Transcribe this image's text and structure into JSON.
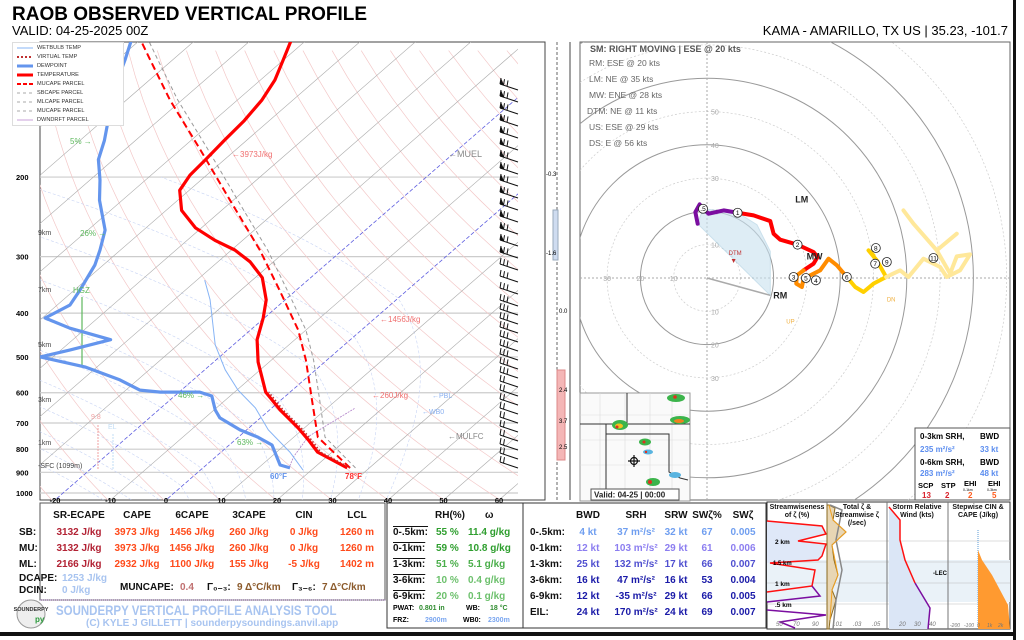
{
  "header": {
    "title": "RAOB OBSERVED VERTICAL PROFILE",
    "valid": "VALID: 04-25-2025 00Z",
    "station": "KAMA - AMARILLO, TX US | 35.23, -101.7"
  },
  "legend": [
    "WETBULB TEMP",
    "VIRTUAL TEMP",
    "DEWPOINT",
    "TEMPERATURE",
    "MUCAPE PARCEL",
    "SBCAPE PARCEL",
    "MLCAPE PARCEL",
    "MUCAPE PARCEL",
    "DWNDRFT PARCEL"
  ],
  "skewt_annotations": {
    "cape_3973": "←3973J/kg",
    "cape_1456": "←1456J/kg",
    "cape_260": "←260J/kg",
    "muel": "←MUEL",
    "pbl": "←PBL",
    "wb0": "←WB0",
    "mulfc": "←MULFC",
    "rh5": "5% →",
    "rh26": "26% →",
    "rh46": "46% →",
    "rh63": "63% →",
    "hgz": "HGZ",
    "km9": "9km",
    "km7": "7km",
    "km5": "5km",
    "km3": "3km",
    "km1": "1km",
    "sfc": "-SFC (1099m)",
    "lapse": "9.8",
    "el": "EL",
    "dewpoint_sfc": "60°F",
    "temp_sfc": "78°F"
  },
  "advection_labels": [
    "-0.3",
    "-1.6",
    "0.0",
    "2.4",
    "3.7",
    "2.5"
  ],
  "storm_motion": {
    "title": "SM: RIGHT MOVING | ESE @ 20 kts",
    "items": [
      "RM: ESE @ 20 kts",
      "LM: NE @ 35 kts",
      "MW: ENE @ 28 kts",
      "DTM: NE @ 11 kts",
      "US: ESE @ 29 kts",
      "DS: E @ 56 kts"
    ]
  },
  "radar": {
    "valid": "Valid: 04-25 | 00:00"
  },
  "srh_box": {
    "h1": "0-3km SRH,",
    "h1b": "BWD",
    "v1": "235 m²/s²",
    "v1b": "33 kt",
    "h2": "0-6km SRH,",
    "h2b": "BWD",
    "v2": "283 m²/s²",
    "v2b": "48 kt",
    "labels": [
      "SCP",
      "STP",
      "EHI",
      "EHI"
    ],
    "sublabels": [
      "",
      "",
      "0-1km",
      "0-3km"
    ],
    "values": [
      "13",
      "2",
      "2",
      "5"
    ]
  },
  "thermo_table": {
    "headers": [
      "SR-ECAPE",
      "CAPE",
      "6CAPE",
      "3CAPE",
      "CIN",
      "LCL"
    ],
    "rows": [
      {
        "label": "SB:",
        "values": [
          "3132 J/kg",
          "3973 J/kg",
          "1456 J/kg",
          "260 J/kg",
          "0 J/kg",
          "1260 m"
        ]
      },
      {
        "label": "MU:",
        "values": [
          "3132 J/kg",
          "3973 J/kg",
          "1456 J/kg",
          "260 J/kg",
          "0 J/kg",
          "1260 m"
        ]
      },
      {
        "label": "ML:",
        "values": [
          "2166 J/kg",
          "2932 J/kg",
          "1100 J/kg",
          "155 J/kg",
          "-5 J/kg",
          "1402 m"
        ]
      }
    ],
    "dcape_label": "DCAPE:",
    "dcape": "1253 J/kg",
    "dcin_label": "DCIN:",
    "dcin": "0 J/kg",
    "muncape_label": "MUNCAPE:",
    "muncape": "0.4",
    "lr03_label": "Γ₀₋₃:",
    "lr03": "9 Δ°C/km",
    "lr36_label": "Γ₃₋₆:",
    "lr36": "7 Δ°C/km"
  },
  "branding": {
    "logo": "SOUNDERPY",
    "title": "SOUNDERPY VERTICAL PROFILE ANALYSIS TOOL",
    "credit": "(C) KYLE J GILLETT | sounderpysoundings.anvil.app"
  },
  "moisture_table": {
    "headers": [
      "RH(%)",
      "ω"
    ],
    "rows": [
      {
        "label": "0-.5km:",
        "rh": "55 %",
        "w": "11.4 g/kg"
      },
      {
        "label": "0-1km:",
        "rh": "59 %",
        "w": "10.8 g/kg"
      },
      {
        "label": "1-3km:",
        "rh": "51 %",
        "w": "5.1 g/kg"
      },
      {
        "label": "3-6km:",
        "rh": "10 %",
        "w": "0.4 g/kg"
      },
      {
        "label": "6-9km:",
        "rh": "20 %",
        "w": "0.1 g/kg"
      }
    ],
    "pwat_label": "PWAT:",
    "pwat": "0.801 in",
    "wb_label": "WB:",
    "wb": "18 °C",
    "frz_label": "FRZ:",
    "frz": "2900m",
    "wb0_label": "WB0:",
    "wb0": "2300m"
  },
  "kinematic_table": {
    "headers": [
      "BWD",
      "SRH",
      "SRW",
      "SWζ%",
      "SWζ"
    ],
    "rows": [
      {
        "label": "0-.5km:",
        "values": [
          "4 kt",
          "37 m²/s²",
          "32 kt",
          "67",
          "0.005"
        ]
      },
      {
        "label": "0-1km:",
        "values": [
          "12 kt",
          "103 m²/s²",
          "29 kt",
          "61",
          "0.006"
        ]
      },
      {
        "label": "1-3km:",
        "values": [
          "25 kt",
          "132 m²/s²",
          "17 kt",
          "66",
          "0.007"
        ]
      },
      {
        "label": "3-6km:",
        "values": [
          "16 kt",
          "47 m²/s²",
          "16 kt",
          "53",
          "0.004"
        ]
      },
      {
        "label": "6-9km:",
        "values": [
          "12 kt",
          "-35 m²/s²",
          "29 kt",
          "66",
          "0.005"
        ]
      },
      {
        "label": "EIL:",
        "values": [
          "24 kt",
          "170 m²/s²",
          "24 kt",
          "69",
          "0.007"
        ]
      }
    ]
  },
  "mini_panels": {
    "p1_title": "Streamwiseness of ζ (%)",
    "p1_km": [
      "2 km",
      "1.5 km",
      "1 km",
      ".5 km"
    ],
    "p1_ticks": [
      "50",
      "70",
      "90"
    ],
    "p2_title": "Total ζ & Streamwise ζ (/sec)",
    "p2_ticks": [
      ".01",
      ".03",
      ".05"
    ],
    "p3_title": "Storm Relative Wind (kts)",
    "p3_ticks": [
      "20",
      "30",
      "40"
    ],
    "p3_lec": "-LEC",
    "p4_title": "Stepwise CIN & CAPE (J/kg)",
    "p4_ticks": [
      "-200",
      "-100",
      "0",
      "1k",
      "2k"
    ]
  },
  "colors": {
    "temperature": "#ff0000",
    "dewpoint": "#6495ed",
    "wetbulb": "#87b4f5",
    "parcel": "#ff0000",
    "accent_blue": "#6f9ef0",
    "dark_blue": "#1a1aa8",
    "cape_orange": "#ff4a1a",
    "ecape_red": "#b22234"
  },
  "chart_data": [
    {
      "type": "line",
      "title": "",
      "xlabel": "",
      "ylabel": "",
      "x_ticks": [
        -20,
        -10,
        0,
        10,
        20,
        30,
        40,
        50,
        60
      ],
      "y_ticks": [
        200,
        300,
        400,
        500,
        600,
        700,
        800,
        900,
        1000
      ],
      "ylim": [
        1000,
        100
      ],
      "y_scale": "log (skew-T)",
      "series": [
        {
          "name": "TEMPERATURE",
          "points": [
            [
              880,
              26.0
            ],
            [
              812,
              17.4
            ],
            [
              763,
              13.2
            ],
            [
              718,
              8.9
            ],
            [
              655,
              1.9
            ],
            [
              598,
              -4.4
            ],
            [
              513,
              -12.0
            ],
            [
              458,
              -16.8
            ],
            [
              410,
              -20.2
            ],
            [
              374,
              -23.4
            ],
            [
              334,
              -28.7
            ],
            [
              308,
              -34.2
            ],
            [
              290,
              -39.4
            ],
            [
              276,
              -45.0
            ],
            [
              259,
              -51.1
            ],
            [
              237,
              -57.2
            ],
            [
              214,
              -61.7
            ],
            [
              198,
              -63.0
            ],
            [
              183,
              -63.4
            ],
            [
              166,
              -64.0
            ],
            [
              150,
              -64.5
            ],
            [
              135,
              -65.6
            ],
            [
              122,
              -67.4
            ],
            [
              110,
              -70.1
            ],
            [
              100,
              -72.6
            ]
          ]
        },
        {
          "name": "DEWPOINT",
          "points": [
            [
              880,
              15.7
            ],
            [
              867,
              13.3
            ],
            [
              783,
              7.7
            ],
            [
              752,
              3.5
            ],
            [
              725,
              -1.2
            ],
            [
              682,
              -7.3
            ],
            [
              655,
              -9.8
            ],
            [
              610,
              -13.3
            ],
            [
              598,
              -16.3
            ],
            [
              598,
              -23.4
            ],
            [
              592,
              -27.5
            ],
            [
              562,
              -33.2
            ],
            [
              526,
              -42.2
            ],
            [
              500,
              -52.3
            ],
            [
              483,
              -48.4
            ],
            [
              458,
              -43.2
            ],
            [
              432,
              -52.9
            ],
            [
              410,
              -59.5
            ],
            [
              384,
              -57.7
            ],
            [
              356,
              -59.0
            ],
            [
              313,
              -61.5
            ],
            [
              290,
              -63.7
            ],
            [
              262,
              -66.9
            ],
            [
              225,
              -74.1
            ],
            [
              203,
              -78.2
            ],
            [
              183,
              -82.7
            ],
            [
              166,
              -85.6
            ],
            [
              142,
              -90.9
            ],
            [
              125,
              -95.1
            ],
            [
              110,
              -98.6
            ],
            [
              100,
              -101.4
            ]
          ]
        },
        {
          "name": "WETBULB TEMP",
          "points": [
            [
              890,
              18.5
            ],
            [
              812,
              12.4
            ],
            [
              725,
              3.9
            ],
            [
              648,
              -3.0
            ],
            [
              592,
              -9.8
            ],
            [
              534,
              -16.3
            ],
            [
              470,
              -23.3
            ],
            [
              374,
              -33.5
            ],
            [
              338,
              -38.6
            ]
          ]
        },
        {
          "name": "MUCAPE PARCEL",
          "points": [
            [
              880,
              26.5
            ],
            [
              752,
              14.3
            ],
            [
              623,
              5.6
            ],
            [
              508,
              -3.8
            ],
            [
              436,
              -11.4
            ],
            [
              356,
              -23.0
            ],
            [
              290,
              -34.9
            ],
            [
              225,
              -50.6
            ],
            [
              174,
              -66.4
            ],
            [
              135,
              -82.2
            ],
            [
              110,
              -94.1
            ],
            [
              100,
              -99.6
            ]
          ]
        },
        {
          "name": "MLCAPE PARCEL",
          "points": [
            [
              880,
              27.5
            ],
            [
              752,
              15.6
            ],
            [
              623,
              7.0
            ],
            [
              508,
              -2.4
            ],
            [
              436,
              -10.0
            ],
            [
              356,
              -21.6
            ],
            [
              290,
              -33.5
            ],
            [
              225,
              -49.2
            ],
            [
              174,
              -65.0
            ],
            [
              135,
              -80.8
            ],
            [
              110,
              -92.7
            ],
            [
              100,
              -98.2
            ]
          ]
        }
      ]
    },
    {
      "type": "line",
      "title": "hodograph",
      "units": "kts",
      "rings": [
        10,
        20,
        30,
        40,
        50,
        60,
        70,
        80,
        90
      ],
      "segments": [
        {
          "color": "#7b0ea0",
          "points": [
            [
              -2.8,
              16.3
            ],
            [
              -3.5,
              19.8
            ],
            [
              -2.2,
              22.1
            ],
            [
              -1.2,
              20.8
            ],
            [
              0.5,
              19.3
            ],
            [
              5,
              20.3
            ],
            [
              9.2,
              19.6
            ]
          ]
        },
        {
          "color": "#ff0000",
          "points": [
            [
              9.2,
              19.6
            ],
            [
              14,
              18.8
            ],
            [
              19,
              17.1
            ],
            [
              20,
              13.3
            ],
            [
              22,
              11.5
            ],
            [
              27.2,
              10
            ],
            [
              32,
              7.8
            ],
            [
              33.2,
              6.3
            ],
            [
              32,
              4.3
            ],
            [
              29,
              2.3
            ]
          ]
        },
        {
          "color": "#ff8c00",
          "points": [
            [
              29,
              2.3
            ],
            [
              27,
              0.8
            ],
            [
              26.8,
              -1.7
            ],
            [
              28.5,
              -2.7
            ],
            [
              29,
              -0.2
            ],
            [
              32,
              1.3
            ],
            [
              34,
              2.3
            ],
            [
              36.5,
              5.8
            ],
            [
              39,
              3.8
            ],
            [
              42,
              0.3
            ]
          ]
        },
        {
          "color": "#ffd000",
          "points": [
            [
              42,
              0.3
            ],
            [
              44.5,
              -2.7
            ],
            [
              47,
              -4.2
            ],
            [
              50,
              -1.7
            ],
            [
              53.8,
              0.3
            ],
            [
              51,
              5.3
            ],
            [
              48.5,
              8.3
            ],
            [
              50,
              6.8
            ]
          ]
        },
        {
          "color": "#ffe89a",
          "points": [
            [
              53.8,
              0.3
            ],
            [
              58,
              2.3
            ],
            [
              60.5,
              0.3
            ],
            [
              65,
              5.8
            ],
            [
              70,
              3.3
            ],
            [
              72,
              0.3
            ],
            [
              76,
              2.3
            ],
            [
              79,
              7.1
            ],
            [
              75,
              6.5
            ],
            [
              73,
              1.3
            ],
            [
              69,
              8.3
            ],
            [
              75,
              13.3
            ],
            [
              69,
              8.3
            ],
            [
              62,
              16.3
            ],
            [
              59,
              20.3
            ]
          ]
        }
      ],
      "height_markers": [
        {
          "label": ".5",
          "u": -1.2,
          "v": 20.8
        },
        {
          "label": "1",
          "u": 9.2,
          "v": 19.6
        },
        {
          "label": "2",
          "u": 27.2,
          "v": 10
        },
        {
          "label": "3",
          "u": 26,
          "v": 0.3
        },
        {
          "label": "5",
          "u": 29.7,
          "v": 0
        },
        {
          "label": "4",
          "u": 32.7,
          "v": -0.7
        },
        {
          "label": "6",
          "u": 42,
          "v": 0.3
        },
        {
          "label": "7",
          "u": 50.5,
          "v": 4.3
        },
        {
          "label": "8",
          "u": 50.7,
          "v": 9
        },
        {
          "label": "9",
          "u": 54,
          "v": 4.8
        },
        {
          "label": "11",
          "u": 68,
          "v": 6
        }
      ],
      "points_of_interest": [
        {
          "label": "RM",
          "u": 19,
          "v": -5.2
        },
        {
          "label": "LM",
          "u": 28,
          "v": 23.5
        },
        {
          "label": "MW",
          "u": 30.5,
          "v": 8
        },
        {
          "label": "DTM",
          "u": 8,
          "v": 7.8
        },
        {
          "label": "UP",
          "u": 25.3,
          "v": -12.7
        },
        {
          "label": "DN",
          "u": 55.5,
          "v": -6.2
        }
      ]
    }
  ]
}
